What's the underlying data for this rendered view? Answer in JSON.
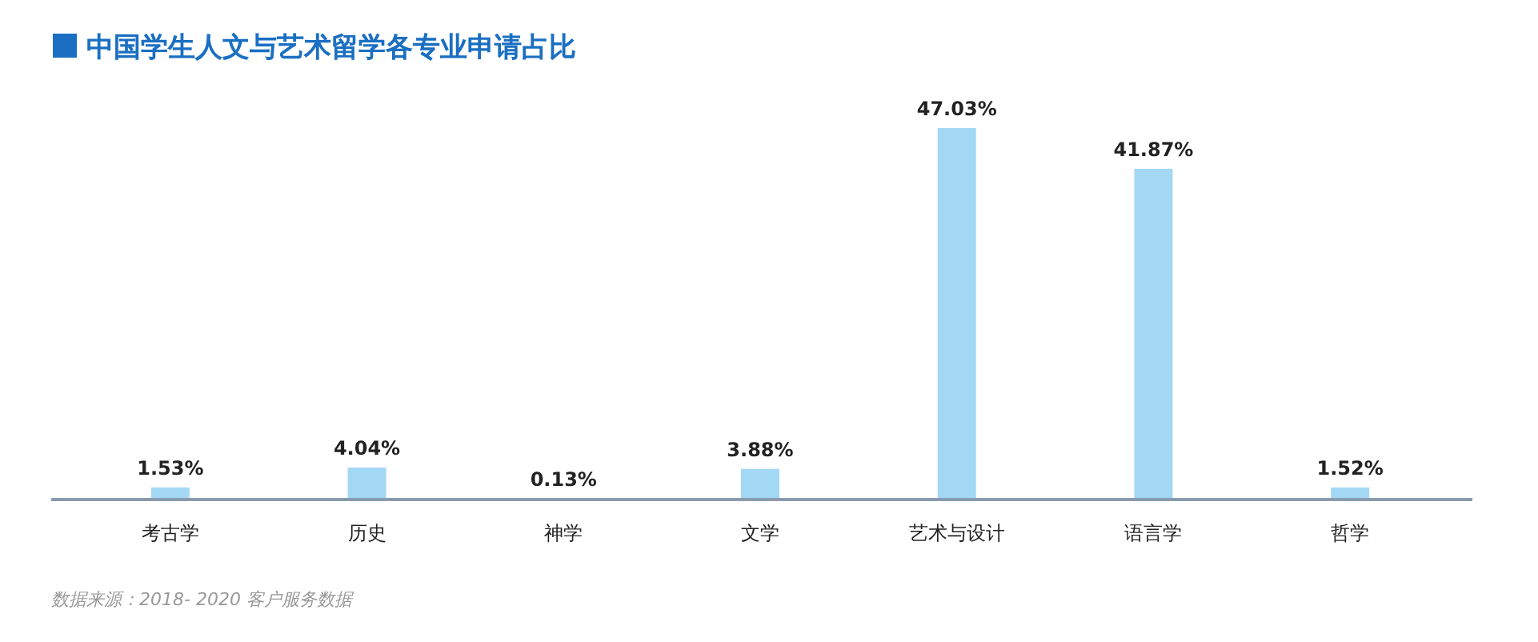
{
  "chart_data": {
    "type": "bar",
    "title": "中国学生人文与艺术留学各专业申请占比",
    "categories": [
      "考古学",
      "历史",
      "神学",
      "文学",
      "艺术与设计",
      "语言学",
      "哲学"
    ],
    "values": [
      1.53,
      4.04,
      0.13,
      3.88,
      47.03,
      41.87,
      1.52
    ],
    "value_labels": [
      "1.53%",
      "4.04%",
      "0.13%",
      "3.88%",
      "47.03%",
      "41.87%",
      "1.52%"
    ],
    "color": "#a3d8f5",
    "annotations": [
      "数据来源：2018- 2020 客户服务数据"
    ]
  }
}
